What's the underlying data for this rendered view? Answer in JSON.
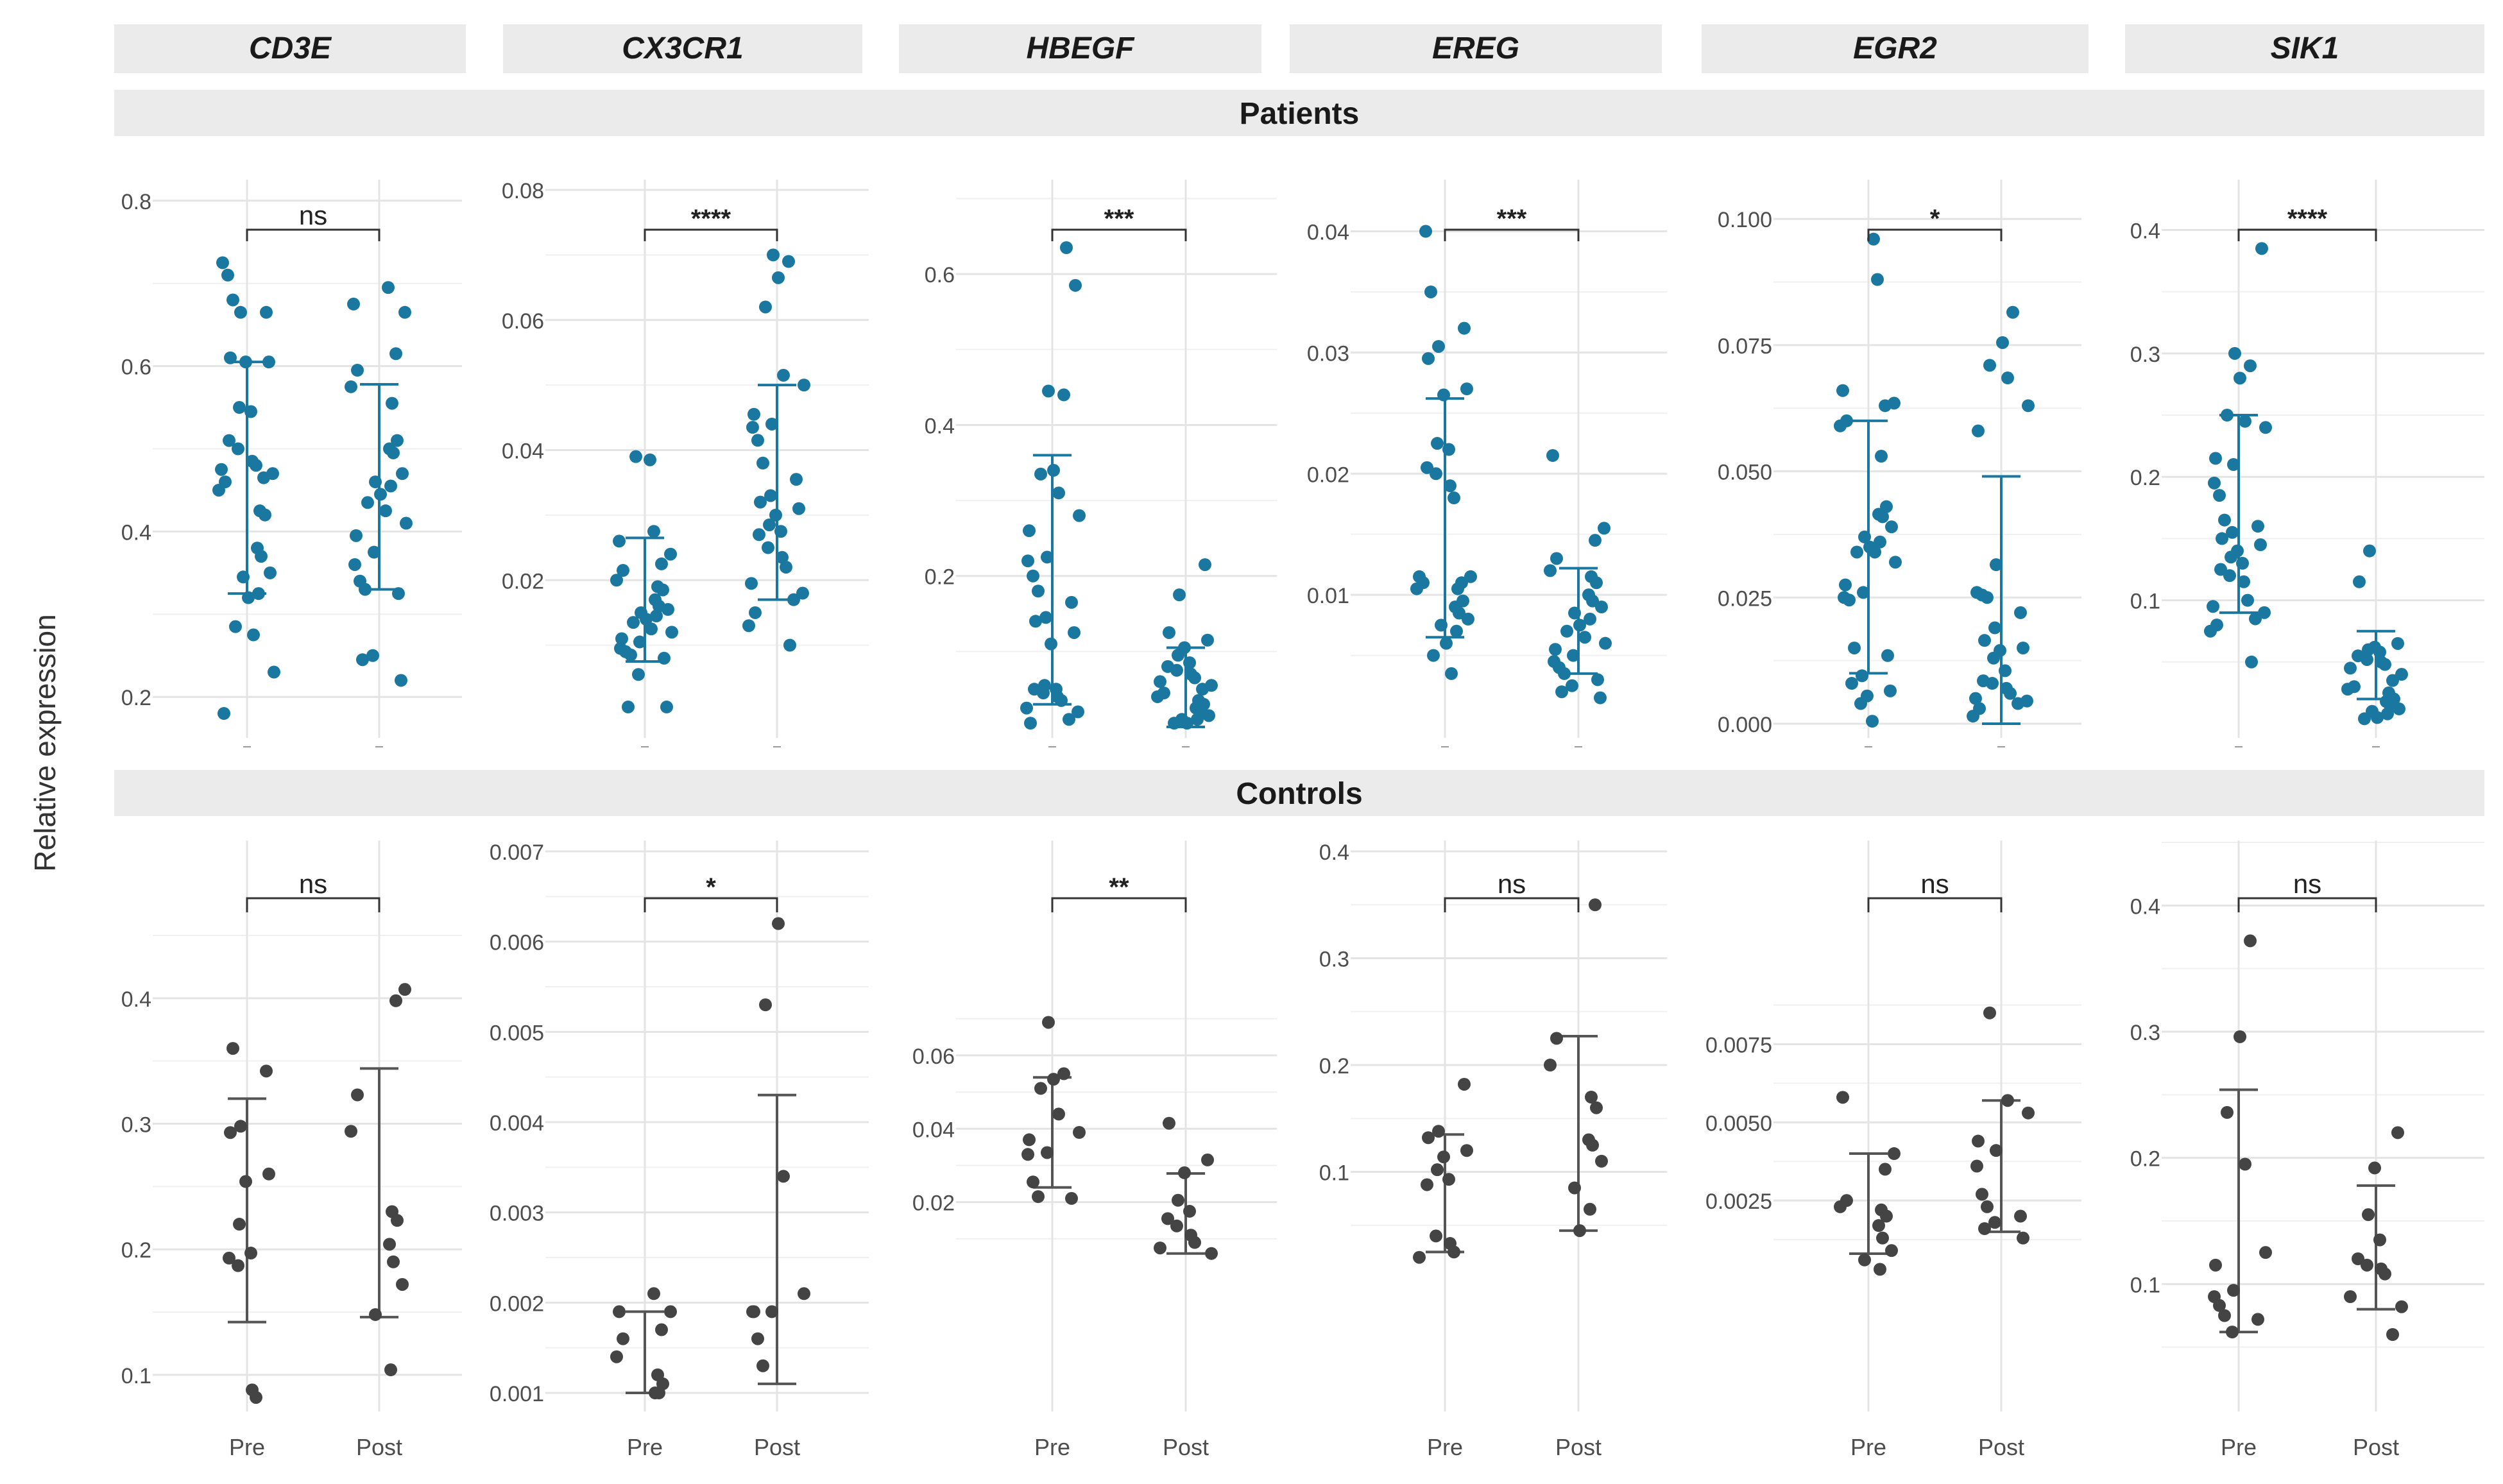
{
  "ylabel": "Relative expression",
  "groups": [
    {
      "label": "Pre"
    },
    {
      "label": "Post"
    }
  ],
  "rows": [
    {
      "label": "Patients",
      "point_color": "#1a78a0",
      "bar_color": "#1a78a0"
    },
    {
      "label": "Controls",
      "point_color": "#444444",
      "bar_color": "#555555"
    }
  ],
  "chart_data": [
    {
      "type": "scatter",
      "gene": "CD3E",
      "row": "Patients",
      "ylim": [
        0.18,
        0.82
      ],
      "ticks": [
        "0.2",
        "0.4",
        "0.6",
        "0.8"
      ],
      "significance": "ns",
      "mean_sd": {
        "pre": [
          0.46,
          0.325,
          0.605
        ],
        "post": [
          0.455,
          0.33,
          0.578
        ]
      },
      "pre": [
        0.725,
        0.71,
        0.68,
        0.665,
        0.665,
        0.61,
        0.605,
        0.605,
        0.55,
        0.545,
        0.51,
        0.5,
        0.485,
        0.48,
        0.475,
        0.47,
        0.465,
        0.46,
        0.45,
        0.425,
        0.42,
        0.38,
        0.37,
        0.35,
        0.345,
        0.325,
        0.32,
        0.285,
        0.275,
        0.23,
        0.18
      ],
      "post": [
        0.695,
        0.675,
        0.665,
        0.615,
        0.595,
        0.575,
        0.555,
        0.51,
        0.5,
        0.495,
        0.47,
        0.46,
        0.455,
        0.445,
        0.435,
        0.425,
        0.41,
        0.395,
        0.375,
        0.36,
        0.34,
        0.33,
        0.325,
        0.25,
        0.245,
        0.22
      ]
    },
    {
      "type": "scatter",
      "gene": "CX3CR1",
      "row": "Patients",
      "ylim": [
        0.0,
        0.08
      ],
      "ticks": [
        "0.02",
        "0.04",
        "0.06",
        "0.08"
      ],
      "significance": "****",
      "mean_sd": {
        "pre": [
          0.017,
          0.0075,
          0.0265
        ],
        "post": [
          0.0335,
          0.017,
          0.05
        ]
      },
      "pre": [
        0.039,
        0.0385,
        0.0275,
        0.026,
        0.024,
        0.0225,
        0.0215,
        0.02,
        0.019,
        0.0185,
        0.017,
        0.016,
        0.0155,
        0.015,
        0.0145,
        0.014,
        0.0135,
        0.0125,
        0.012,
        0.011,
        0.0105,
        0.0095,
        0.009,
        0.0085,
        0.008,
        0.0055,
        0.0005,
        0.0005
      ],
      "post": [
        0.07,
        0.069,
        0.0665,
        0.062,
        0.0515,
        0.05,
        0.0455,
        0.044,
        0.0435,
        0.0415,
        0.038,
        0.0355,
        0.033,
        0.032,
        0.031,
        0.03,
        0.0285,
        0.0275,
        0.027,
        0.025,
        0.0235,
        0.022,
        0.0195,
        0.018,
        0.017,
        0.015,
        0.013,
        0.01
      ]
    },
    {
      "type": "scatter",
      "gene": "HBEGF",
      "row": "Patients",
      "ylim": [
        0.0,
        0.72
      ],
      "ticks": [
        "0.2",
        "0.4",
        "0.6"
      ],
      "significance": "***",
      "mean_sd": {
        "pre": [
          0.19,
          0.03,
          0.36
        ],
        "post": [
          0.05,
          0.0,
          0.105
        ]
      },
      "pre": [
        0.635,
        0.585,
        0.445,
        0.44,
        0.34,
        0.335,
        0.31,
        0.28,
        0.26,
        0.225,
        0.22,
        0.2,
        0.18,
        0.165,
        0.145,
        0.14,
        0.125,
        0.11,
        0.055,
        0.05,
        0.05,
        0.045,
        0.04,
        0.035,
        0.025,
        0.02,
        0.01,
        0.005
      ],
      "post": [
        0.215,
        0.175,
        0.125,
        0.115,
        0.105,
        0.095,
        0.085,
        0.08,
        0.075,
        0.07,
        0.065,
        0.06,
        0.055,
        0.05,
        0.045,
        0.04,
        0.035,
        0.03,
        0.025,
        0.02,
        0.015,
        0.01,
        0.01,
        0.005,
        0.005
      ]
    },
    {
      "type": "scatter",
      "gene": "EREG",
      "row": "Patients",
      "ylim": [
        0.0,
        0.044
      ],
      "ticks": [
        "0.01",
        "0.02",
        "0.03",
        "0.04"
      ],
      "significance": "***",
      "mean_sd": {
        "pre": [
          0.0165,
          0.0065,
          0.0262
        ],
        "post": [
          0.0075,
          0.0035,
          0.0122
        ]
      },
      "pre": [
        0.04,
        0.035,
        0.032,
        0.0305,
        0.0295,
        0.027,
        0.0265,
        0.0225,
        0.022,
        0.0205,
        0.02,
        0.019,
        0.018,
        0.0115,
        0.0115,
        0.011,
        0.011,
        0.0105,
        0.0105,
        0.0095,
        0.009,
        0.0085,
        0.008,
        0.0075,
        0.007,
        0.006,
        0.005,
        0.0035
      ],
      "post": [
        0.0215,
        0.0155,
        0.0145,
        0.013,
        0.012,
        0.0115,
        0.011,
        0.01,
        0.0095,
        0.009,
        0.0085,
        0.008,
        0.0075,
        0.007,
        0.0065,
        0.006,
        0.0055,
        0.005,
        0.0045,
        0.004,
        0.0035,
        0.003,
        0.0025,
        0.002,
        0.0015
      ]
    },
    {
      "type": "scatter",
      "gene": "EGR2",
      "row": "Patients",
      "ylim": [
        0.0,
        0.106
      ],
      "ticks": [
        "0.000",
        "0.025",
        "0.050",
        "0.075",
        "0.100"
      ],
      "significance": "*",
      "mean_sd": {
        "pre": [
          0.035,
          0.01,
          0.06
        ],
        "post": [
          0.0245,
          0.0,
          0.049
        ]
      },
      "pre": [
        0.096,
        0.088,
        0.066,
        0.0635,
        0.063,
        0.06,
        0.059,
        0.053,
        0.043,
        0.0415,
        0.041,
        0.039,
        0.037,
        0.036,
        0.035,
        0.034,
        0.034,
        0.032,
        0.0275,
        0.026,
        0.025,
        0.0245,
        0.015,
        0.0135,
        0.0095,
        0.008,
        0.0065,
        0.0055,
        0.004,
        0.0005
      ],
      "post": [
        0.0815,
        0.0755,
        0.071,
        0.0685,
        0.063,
        0.058,
        0.0315,
        0.026,
        0.0255,
        0.025,
        0.022,
        0.019,
        0.0165,
        0.015,
        0.0145,
        0.013,
        0.0105,
        0.0085,
        0.008,
        0.007,
        0.006,
        0.005,
        0.0045,
        0.004,
        0.003,
        0.0015
      ]
    },
    {
      "type": "scatter",
      "gene": "SIK1",
      "row": "Patients",
      "ylim": [
        0.0,
        0.42
      ],
      "ticks": [
        "0.1",
        "0.2",
        "0.3",
        "0.4"
      ],
      "significance": "****",
      "mean_sd": {
        "pre": [
          0.17,
          0.09,
          0.25
        ],
        "post": [
          0.045,
          0.02,
          0.075
        ]
      },
      "pre": [
        0.385,
        0.3,
        0.29,
        0.28,
        0.25,
        0.245,
        0.24,
        0.215,
        0.21,
        0.195,
        0.185,
        0.165,
        0.16,
        0.155,
        0.15,
        0.145,
        0.14,
        0.135,
        0.13,
        0.125,
        0.12,
        0.115,
        0.1,
        0.095,
        0.09,
        0.085,
        0.08,
        0.075,
        0.05
      ],
      "post": [
        0.14,
        0.115,
        0.065,
        0.062,
        0.06,
        0.058,
        0.055,
        0.052,
        0.05,
        0.048,
        0.045,
        0.04,
        0.035,
        0.03,
        0.028,
        0.025,
        0.02,
        0.018,
        0.015,
        0.012,
        0.01,
        0.008,
        0.005,
        0.004
      ]
    },
    {
      "type": "scatter",
      "gene": "CD3E",
      "row": "Controls",
      "ylim": [
        0.08,
        0.45
      ],
      "ticks": [
        "0.1",
        "0.2",
        "0.3",
        "0.4"
      ],
      "significance": "ns",
      "mean_sd": {
        "pre": [
          0.23,
          0.142,
          0.32
        ],
        "post": [
          0.245,
          0.146,
          0.344
        ]
      },
      "pre": [
        0.36,
        0.342,
        0.298,
        0.293,
        0.26,
        0.254,
        0.22,
        0.197,
        0.193,
        0.187,
        0.088,
        0.082
      ],
      "post": [
        0.407,
        0.398,
        0.323,
        0.294,
        0.23,
        0.223,
        0.204,
        0.19,
        0.172,
        0.148,
        0.104
      ]
    },
    {
      "type": "scatter",
      "gene": "CX3CR1",
      "row": "Controls",
      "ylim": [
        0.001,
        0.007
      ],
      "ticks": [
        "0.001",
        "0.002",
        "0.003",
        "0.004",
        "0.005",
        "0.006",
        "0.007"
      ],
      "significance": "*",
      "mean_sd": {
        "pre": [
          0.0015,
          0.001,
          0.0019
        ],
        "post": [
          0.0027,
          0.0011,
          0.0043
        ]
      },
      "pre": [
        0.0021,
        0.0019,
        0.0019,
        0.0017,
        0.0016,
        0.0014,
        0.0012,
        0.0011,
        0.001,
        0.001
      ],
      "post": [
        0.0062,
        0.0053,
        0.0034,
        0.0021,
        0.0019,
        0.0019,
        0.0019,
        0.0016,
        0.0013
      ]
    },
    {
      "type": "scatter",
      "gene": "HBEGF",
      "row": "Controls",
      "ylim": [
        0.0,
        0.078
      ],
      "ticks": [
        "0.02",
        "0.04",
        "0.06"
      ],
      "significance": "**",
      "mean_sd": {
        "pre": [
          0.039,
          0.024,
          0.054
        ],
        "post": [
          0.0155,
          0.006,
          0.0278
        ]
      },
      "pre": [
        0.069,
        0.055,
        0.0535,
        0.051,
        0.044,
        0.039,
        0.037,
        0.0335,
        0.033,
        0.0255,
        0.0215,
        0.021
      ],
      "post": [
        0.0415,
        0.0315,
        0.028,
        0.0205,
        0.0175,
        0.0155,
        0.0135,
        0.011,
        0.009,
        0.0075,
        0.006
      ]
    },
    {
      "type": "scatter",
      "gene": "EREG",
      "row": "Controls",
      "ylim": [
        0.0,
        0.4
      ],
      "ticks": [
        "0.1",
        "0.2",
        "0.3",
        "0.4"
      ],
      "significance": "ns",
      "mean_sd": {
        "pre": [
          0.08,
          0.025,
          0.135
        ],
        "post": [
          0.135,
          0.045,
          0.227
        ]
      },
      "pre": [
        0.182,
        0.138,
        0.132,
        0.12,
        0.114,
        0.102,
        0.093,
        0.088,
        0.04,
        0.033,
        0.025,
        0.02
      ],
      "post": [
        0.35,
        0.225,
        0.2,
        0.17,
        0.16,
        0.13,
        0.125,
        0.11,
        0.085,
        0.065,
        0.045
      ]
    },
    {
      "type": "scatter",
      "gene": "EGR2",
      "row": "Controls",
      "ylim": [
        0.0,
        0.0095
      ],
      "ticks": [
        "0.0025",
        "0.0050",
        "0.0075"
      ],
      "significance": "ns",
      "mean_sd": {
        "pre": [
          0.0024,
          0.0008,
          0.004
        ],
        "post": [
          0.0036,
          0.0015,
          0.0057
        ]
      },
      "pre": [
        0.0058,
        0.004,
        0.0035,
        0.0025,
        0.0023,
        0.0022,
        0.002,
        0.0017,
        0.0013,
        0.0009,
        0.0006,
        0.0003
      ],
      "post": [
        0.0085,
        0.0057,
        0.0053,
        0.0044,
        0.0041,
        0.0036,
        0.0027,
        0.0023,
        0.002,
        0.0018,
        0.0016,
        0.0013
      ]
    },
    {
      "type": "scatter",
      "gene": "SIK1",
      "row": "Controls",
      "ylim": [
        0.06,
        0.42
      ],
      "ticks": [
        "0.1",
        "0.2",
        "0.3",
        "0.4"
      ],
      "significance": "ns",
      "mean_sd": {
        "pre": [
          0.158,
          0.062,
          0.254
        ],
        "post": [
          0.128,
          0.08,
          0.178
        ]
      },
      "pre": [
        0.372,
        0.296,
        0.236,
        0.195,
        0.125,
        0.115,
        0.095,
        0.09,
        0.083,
        0.075,
        0.072,
        0.062
      ],
      "post": [
        0.22,
        0.192,
        0.155,
        0.135,
        0.12,
        0.115,
        0.112,
        0.108,
        0.09,
        0.082,
        0.06
      ]
    }
  ]
}
